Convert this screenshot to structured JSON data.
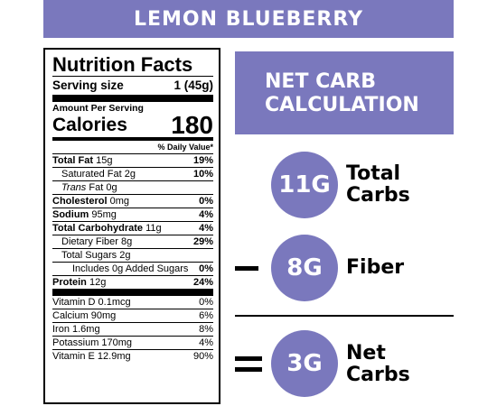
{
  "banner": {
    "title": "LEMON BLUEBERRY"
  },
  "nutrition": {
    "title": "Nutrition Facts",
    "serving_label": "Serving size",
    "serving_value": "1 (45g)",
    "amount_per": "Amount Per Serving",
    "calories_label": "Calories",
    "calories_value": "180",
    "dv_header": "% Daily Value*",
    "rows": [
      {
        "name": "Total Fat",
        "amount": "15g",
        "dv": "19%"
      },
      {
        "name": "Saturated Fat",
        "amount": "2g",
        "dv": "10%"
      },
      {
        "name_italic": "Trans",
        "name_rest": " Fat",
        "amount": "0g"
      },
      {
        "name": "Cholesterol",
        "amount": "0mg",
        "dv": "0%"
      },
      {
        "name": "Sodium",
        "amount": "95mg",
        "dv": "4%"
      },
      {
        "name": "Total Carbohydrate",
        "amount": "11g",
        "dv": "4%"
      },
      {
        "name": "Dietary Fiber",
        "amount": "8g",
        "dv": "29%"
      },
      {
        "name": "Total Sugars",
        "amount": "2g"
      },
      {
        "name": "Includes 0g Added Sugars",
        "dv": "0%"
      },
      {
        "name": "Protein",
        "amount": "12g",
        "dv": "24%"
      }
    ],
    "vitamins": [
      {
        "name": "Vitamin D 0.1mcg",
        "dv": "0%"
      },
      {
        "name": "Calcium 90mg",
        "dv": "6%"
      },
      {
        "name": "Iron 1.6mg",
        "dv": "8%"
      },
      {
        "name": "Potassium 170mg",
        "dv": "4%"
      },
      {
        "name": "Vitamin E 12.9mg",
        "dv": "90%"
      }
    ]
  },
  "calc": {
    "title_line1": "NET CARB",
    "title_line2": "CALCULATION",
    "total_value": "11G",
    "total_label_line1": "Total",
    "total_label_line2": "Carbs",
    "minus_sign": "−",
    "fiber_value": "8G",
    "fiber_label": "Fiber",
    "equals_sign": "=",
    "net_value": "3G",
    "net_label_line1": "Net",
    "net_label_line2": "Carbs"
  },
  "colors": {
    "accent": "#7a78bd",
    "text": "#000000",
    "background": "#ffffff"
  }
}
